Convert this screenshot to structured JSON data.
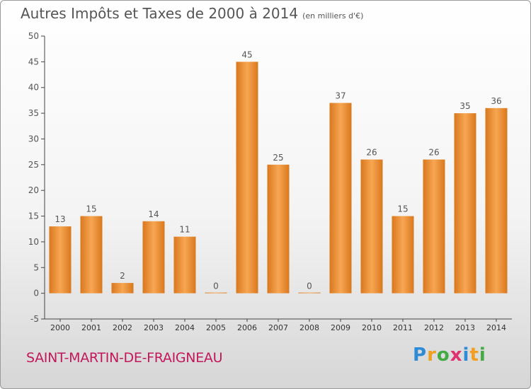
{
  "title": {
    "main": "Autres Impôts et Taxes de 2000 à 2014",
    "unit": "(en milliers d'€)"
  },
  "commune": "SAINT-MARTIN-DE-FRAIGNEAU",
  "logo": {
    "text": "Proxiti",
    "letters": [
      "P",
      "r",
      "o",
      "x",
      "i",
      "t",
      "i"
    ],
    "colors": [
      "#2e8bd6",
      "#f0a020",
      "#44aa44",
      "#e03070",
      "#2e8bd6",
      "#f0a020",
      "#44aa44"
    ]
  },
  "colors": {
    "bar_light": "#f7a652",
    "bar_dark": "#d9781e",
    "text": "#555555",
    "commune": "#c2185b"
  },
  "chart_data": {
    "type": "bar",
    "title": "Autres Impôts et Taxes de 2000 à 2014",
    "xlabel": "",
    "ylabel": "",
    "ylim": [
      -5,
      50
    ],
    "yticks": [
      -5,
      0,
      5,
      10,
      15,
      20,
      25,
      30,
      35,
      40,
      45,
      50
    ],
    "grid": false,
    "categories": [
      "2000",
      "2001",
      "2002",
      "2003",
      "2004",
      "2005",
      "2006",
      "2007",
      "2008",
      "2009",
      "2010",
      "2011",
      "2012",
      "2013",
      "2014"
    ],
    "values": [
      13,
      15,
      2,
      14,
      11,
      0,
      45,
      25,
      0,
      37,
      26,
      15,
      26,
      35,
      36
    ]
  }
}
